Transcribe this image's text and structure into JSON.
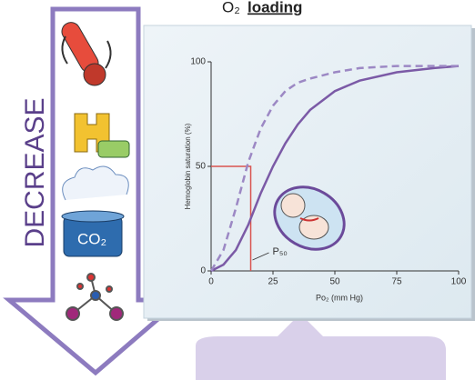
{
  "slide": {
    "title_o2": "O₂",
    "title_word": "loading",
    "arrow_label": "DECREASE",
    "co2_label": "CO₂"
  },
  "chart_data": {
    "type": "line",
    "x_label": "Po₂ (mm Hg)",
    "y_label": "Hemoglobin saturation (%)",
    "annotation": "P₅₀",
    "x": [
      0,
      5,
      10,
      15,
      20,
      25,
      30,
      35,
      40,
      50,
      60,
      75,
      90,
      100
    ],
    "series": [
      {
        "color": "#7b5aa6",
        "dash": false,
        "values": [
          0,
          3,
          10,
          22,
          37,
          50,
          61,
          70,
          77,
          86,
          91,
          95,
          97,
          98
        ]
      },
      {
        "color": "#9c88c4",
        "dash": true,
        "values": [
          0,
          10,
          30,
          52,
          68,
          79,
          86,
          90,
          92,
          95,
          97,
          98,
          98,
          98
        ]
      }
    ],
    "marker": {
      "x": 16,
      "y": 50,
      "color": "#d9534f"
    },
    "xlim": [
      0,
      100
    ],
    "ylim": [
      0,
      100
    ],
    "xticks": [
      0,
      25,
      50,
      75,
      100
    ],
    "yticks": [
      0,
      50,
      100
    ]
  }
}
